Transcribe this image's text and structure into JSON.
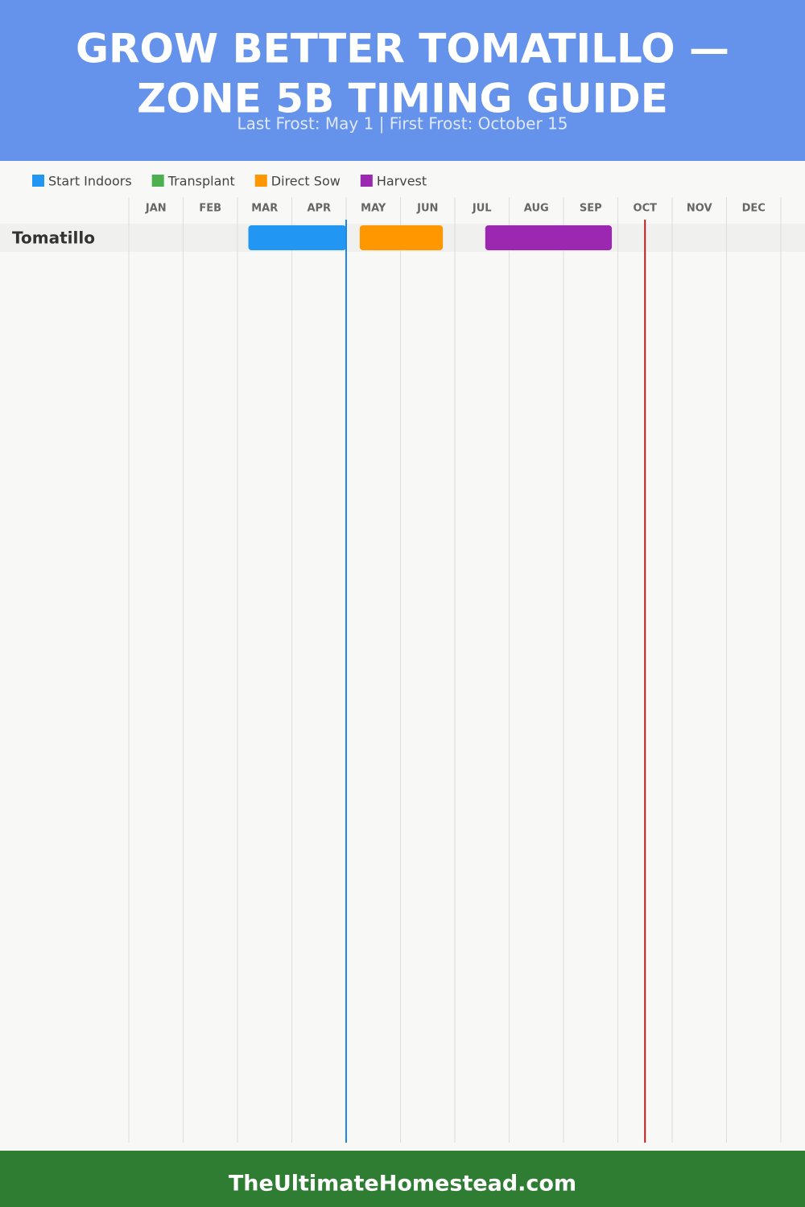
{
  "header": {
    "title_lines": [
      "GROW BETTER TOMATILLO —",
      "ZONE 5B TIMING GUIDE"
    ],
    "subtitle": "Last Frost: May 1 | First Frost: October 15"
  },
  "chart_data": {
    "type": "gantt",
    "months": [
      "JAN",
      "FEB",
      "MAR",
      "APR",
      "MAY",
      "JUN",
      "JUL",
      "AUG",
      "SEP",
      "OCT",
      "NOV",
      "DEC"
    ],
    "xlim": [
      0,
      12
    ],
    "categories": [
      "Tomatillo"
    ],
    "series": [
      {
        "name": "Start Indoors",
        "color": "#2196f3",
        "values": [
          [
            2.2,
            4.0
          ]
        ]
      },
      {
        "name": "Transplant",
        "color": "#4caf50",
        "values": [
          null
        ]
      },
      {
        "name": "Direct Sow",
        "color": "#ff9800",
        "values": [
          [
            4.25,
            5.78
          ]
        ]
      },
      {
        "name": "Harvest",
        "color": "#9c27b0",
        "values": [
          [
            6.56,
            8.89
          ]
        ]
      }
    ],
    "markers": [
      {
        "value": 4.0,
        "color": "#1e88e5"
      },
      {
        "value": 9.5,
        "color": "#b71c1c"
      }
    ],
    "grid": true
  },
  "footer": {
    "text": "TheUltimateHomestead.com"
  }
}
